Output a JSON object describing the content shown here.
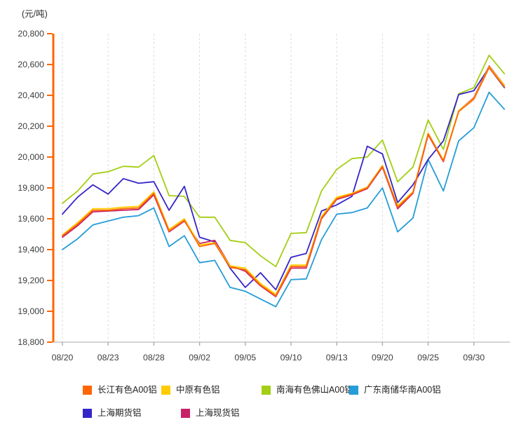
{
  "chart_data": {
    "type": "line",
    "unit_label": "(元/吨)",
    "x_tick_labels": [
      "08/20",
      "08/23",
      "08/28",
      "09/02",
      "09/05",
      "09/10",
      "09/13",
      "09/20",
      "09/25",
      "09/30"
    ],
    "x_label_every_n_points": 3,
    "n_points": 30,
    "ylim": [
      18800,
      20800
    ],
    "y_tick_step": 200,
    "grid": "vertical-dashed",
    "legend_position": "bottom",
    "colors": {
      "y_axis": "#FF6600",
      "x_axis": "#C6C6C6",
      "x_tick": "#ADADAD",
      "grid_line": "#DBDBDB",
      "tick_text": "#3C3C3C"
    },
    "series": [
      {
        "name": "长江有色A00铝",
        "slug": "changjiang-a00",
        "color": "#FF6600",
        "values": [
          19490,
          19565,
          19655,
          19655,
          19665,
          19670,
          19765,
          19520,
          19590,
          19420,
          19440,
          19285,
          19270,
          19170,
          19100,
          19290,
          19290,
          19605,
          19730,
          19760,
          19800,
          19940,
          19675,
          19770,
          20150,
          19975,
          20295,
          20375,
          20580,
          20455
        ]
      },
      {
        "name": "中原有色铝",
        "slug": "zhongyuan",
        "color": "#FFCC00",
        "values": [
          19495,
          19575,
          19665,
          19665,
          19675,
          19680,
          19775,
          19530,
          19600,
          19430,
          19445,
          19295,
          19280,
          19180,
          19110,
          19300,
          19300,
          19615,
          19740,
          19765,
          19805,
          19945,
          19685,
          19775,
          20155,
          19980,
          20300,
          20380,
          20585,
          20465
        ]
      },
      {
        "name": "南海有色佛山A00铝",
        "slug": "nanhai-foshan-a00",
        "color": "#A3CE14",
        "values": [
          19700,
          19780,
          19890,
          19905,
          19940,
          19935,
          20010,
          19750,
          19745,
          19610,
          19610,
          19460,
          19445,
          19360,
          19290,
          19505,
          19510,
          19780,
          19920,
          19990,
          20000,
          20110,
          19840,
          19935,
          20240,
          20050,
          20410,
          20450,
          20660,
          20540
        ]
      },
      {
        "name": "广东南储华南A00铝",
        "slug": "guangdong-nanchu-a00",
        "color": "#259DD8",
        "values": [
          19400,
          19470,
          19560,
          19585,
          19610,
          19620,
          19670,
          19420,
          19490,
          19315,
          19330,
          19155,
          19130,
          19080,
          19030,
          19205,
          19210,
          19465,
          19630,
          19640,
          19670,
          19800,
          19515,
          19605,
          19985,
          19780,
          20105,
          20190,
          20420,
          20310
        ]
      },
      {
        "name": "上海期货铝",
        "slug": "shanghai-futures",
        "color": "#3525C8",
        "values": [
          19630,
          19740,
          19820,
          19760,
          19860,
          19830,
          19840,
          19655,
          19810,
          19480,
          19450,
          19280,
          19155,
          19250,
          19140,
          19350,
          19375,
          19650,
          19690,
          19745,
          20070,
          20020,
          19705,
          19820,
          19985,
          20105,
          20405,
          20430,
          20580,
          20450
        ]
      },
      {
        "name": "上海现货铝",
        "slug": "shanghai-spot",
        "color": "#C82168",
        "values": [
          19480,
          19555,
          19645,
          19650,
          19655,
          19660,
          19755,
          19515,
          19585,
          19440,
          19460,
          19295,
          19260,
          19165,
          19095,
          19280,
          19280,
          19600,
          19725,
          19755,
          19795,
          19935,
          19665,
          19765,
          20145,
          19970,
          20300,
          20385,
          20590,
          20465
        ]
      }
    ],
    "draw_order": [
      2,
      3,
      4,
      5,
      1,
      0
    ],
    "legend_rows": [
      [
        0,
        1,
        2,
        3
      ],
      [
        4,
        5
      ]
    ]
  }
}
